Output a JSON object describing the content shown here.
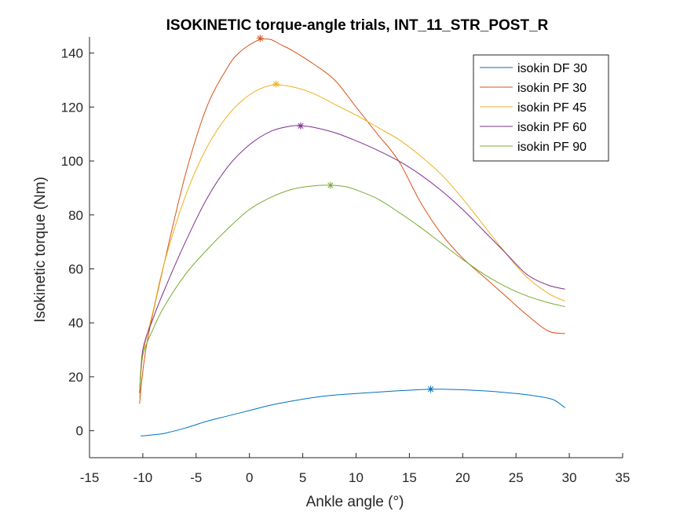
{
  "chart_data": {
    "type": "line",
    "title": "ISOKINETIC torque-angle trials, INT_11_STR_POST_R",
    "xlabel": "Ankle angle (°)",
    "ylabel": "Isokinetic torque (Nm)",
    "xlim": [
      -15,
      35
    ],
    "ylim": [
      -10,
      146
    ],
    "xticks": [
      -15,
      -10,
      -5,
      0,
      5,
      10,
      15,
      20,
      25,
      30,
      35
    ],
    "yticks": [
      0,
      20,
      40,
      60,
      80,
      100,
      120,
      140
    ],
    "legend_position": "top-right",
    "grid": false,
    "series": [
      {
        "name": "isokin DF 30",
        "color": "#0072BD",
        "x": [
          -10.2,
          -9,
          -8,
          -6,
          -4,
          -2,
          0,
          2,
          4,
          6,
          8,
          10,
          12,
          14,
          17,
          19,
          21,
          23,
          25,
          27,
          28.5,
          29.6
        ],
        "y": [
          -2,
          -1.5,
          -1,
          1,
          3.5,
          5.5,
          7.5,
          9.5,
          11,
          12.3,
          13.2,
          13.8,
          14.3,
          14.8,
          15.4,
          15.3,
          15,
          14.5,
          13.8,
          12.8,
          11.5,
          8.5
        ],
        "peak": [
          17,
          15.4
        ]
      },
      {
        "name": "isokin PF 30",
        "color": "#D95319",
        "x": [
          -10.3,
          -10,
          -9.5,
          -8,
          -6,
          -4,
          -2,
          -1,
          0,
          1,
          2,
          3,
          4,
          6,
          8,
          10,
          12,
          14,
          16,
          18,
          20,
          22,
          24,
          26,
          28,
          29.6
        ],
        "y": [
          10,
          22,
          35,
          62,
          95,
          120,
          135,
          140,
          143,
          145,
          145,
          143,
          141,
          136,
          130,
          120,
          110,
          100,
          85,
          73,
          64,
          57,
          50,
          43,
          37,
          36
        ],
        "peak": [
          1,
          145.5
        ]
      },
      {
        "name": "isokin PF 45",
        "color": "#EDB120",
        "x": [
          -10.3,
          -10,
          -9,
          -8,
          -6,
          -4,
          -2,
          0,
          2,
          4,
          6,
          8,
          10,
          12,
          14,
          16,
          18,
          20,
          22,
          24,
          26,
          28,
          29.6
        ],
        "y": [
          12,
          28,
          45,
          62,
          87,
          105,
          117,
          124.5,
          128,
          127.5,
          125,
          121,
          117,
          112.5,
          108,
          102,
          95,
          86,
          76,
          66,
          57,
          51,
          48
        ],
        "peak": [
          2.5,
          128.5
        ]
      },
      {
        "name": "isokin PF 60",
        "color": "#7E2F8E",
        "x": [
          -10.3,
          -10,
          -9,
          -8,
          -6,
          -4,
          -2,
          0,
          2,
          4,
          5,
          6,
          8,
          10,
          12,
          14,
          16,
          18,
          20,
          22,
          24,
          26,
          28,
          29.6
        ],
        "y": [
          14,
          30,
          42,
          52,
          70,
          86,
          98,
          106,
          111,
          113,
          113,
          112.5,
          110.5,
          107.5,
          104,
          100,
          95,
          89,
          82,
          74,
          66,
          58,
          54,
          52.5
        ],
        "peak": [
          4.8,
          113
        ]
      },
      {
        "name": "isokin PF 90",
        "color": "#77AC30",
        "x": [
          -10.3,
          -10,
          -9,
          -8,
          -6,
          -4,
          -2,
          0,
          2,
          4,
          6,
          7.5,
          9,
          10,
          12,
          14,
          16,
          18,
          20,
          22,
          24,
          26,
          28,
          29.6
        ],
        "y": [
          15,
          28,
          38,
          46,
          58,
          67,
          75,
          82,
          86.5,
          89.5,
          90.8,
          91,
          90.5,
          89.3,
          86,
          81,
          75.5,
          69.5,
          63.5,
          58,
          53.5,
          50,
          47.5,
          46
        ],
        "peak": [
          7.6,
          91
        ]
      }
    ]
  }
}
